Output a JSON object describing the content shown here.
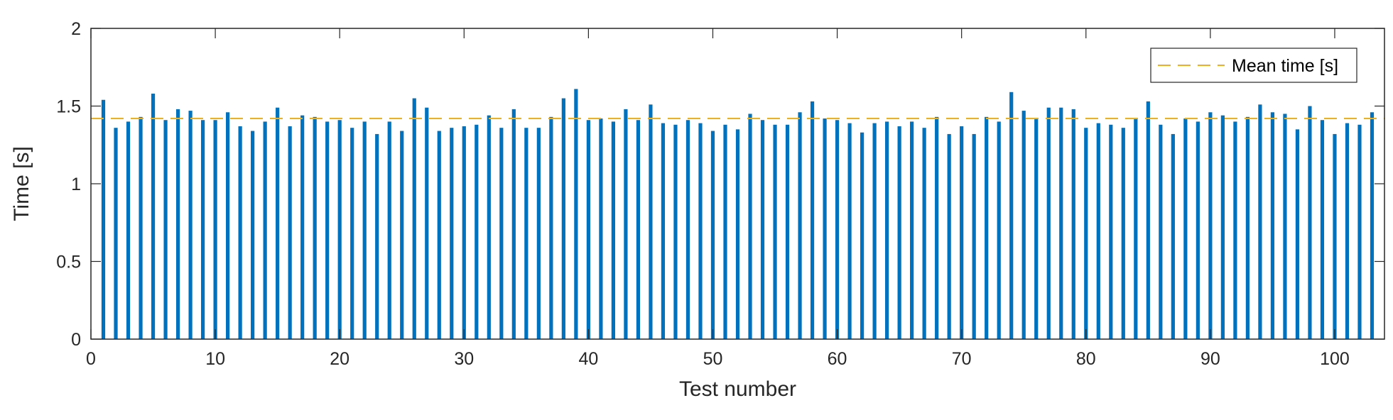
{
  "chart_data": {
    "type": "bar",
    "xlabel": "Test number",
    "ylabel": "Time [s]",
    "xlim": [
      0,
      104
    ],
    "ylim": [
      0,
      2
    ],
    "x_ticks": [
      "0",
      "10",
      "20",
      "30",
      "40",
      "50",
      "60",
      "70",
      "80",
      "90",
      "100"
    ],
    "y_ticks": [
      "0",
      "0.5",
      "1",
      "1.5",
      "2"
    ],
    "grid": false,
    "legend_position": "top-right",
    "colors": {
      "bars": "#0072BD",
      "mean_line": "#EDB120",
      "axes": "#262626"
    },
    "series": [
      {
        "name": "",
        "x": [
          1,
          2,
          3,
          4,
          5,
          6,
          7,
          8,
          9,
          10,
          11,
          12,
          13,
          14,
          15,
          16,
          17,
          18,
          19,
          20,
          21,
          22,
          23,
          24,
          25,
          26,
          27,
          28,
          29,
          30,
          31,
          32,
          33,
          34,
          35,
          36,
          37,
          38,
          39,
          40,
          41,
          42,
          43,
          44,
          45,
          46,
          47,
          48,
          49,
          50,
          51,
          52,
          53,
          54,
          55,
          56,
          57,
          58,
          59,
          60,
          61,
          62,
          63,
          64,
          65,
          66,
          67,
          68,
          69,
          70,
          71,
          72,
          73,
          74,
          75,
          76,
          77,
          78,
          79,
          80,
          81,
          82,
          83,
          84,
          85,
          86,
          87,
          88,
          89,
          90,
          91,
          92,
          93,
          94,
          95,
          96,
          97,
          98,
          99,
          100,
          101,
          102,
          103
        ],
        "values": [
          1.54,
          1.36,
          1.4,
          1.43,
          1.58,
          1.41,
          1.48,
          1.47,
          1.41,
          1.41,
          1.46,
          1.37,
          1.34,
          1.4,
          1.49,
          1.37,
          1.44,
          1.43,
          1.4,
          1.41,
          1.36,
          1.4,
          1.32,
          1.4,
          1.34,
          1.55,
          1.49,
          1.34,
          1.36,
          1.37,
          1.38,
          1.44,
          1.36,
          1.48,
          1.36,
          1.36,
          1.43,
          1.55,
          1.61,
          1.41,
          1.42,
          1.4,
          1.48,
          1.41,
          1.51,
          1.39,
          1.38,
          1.41,
          1.39,
          1.34,
          1.38,
          1.35,
          1.45,
          1.41,
          1.38,
          1.38,
          1.46,
          1.53,
          1.42,
          1.41,
          1.39,
          1.33,
          1.39,
          1.4,
          1.37,
          1.4,
          1.36,
          1.43,
          1.32,
          1.37,
          1.32,
          1.43,
          1.4,
          1.59,
          1.47,
          1.42,
          1.49,
          1.49,
          1.48,
          1.36,
          1.39,
          1.38,
          1.36,
          1.42,
          1.53,
          1.38,
          1.32,
          1.42,
          1.4,
          1.46,
          1.44,
          1.4,
          1.43,
          1.51,
          1.46,
          1.45,
          1.35,
          1.5,
          1.41,
          1.32,
          1.39,
          1.38,
          1.46
        ]
      },
      {
        "name": "Mean time [s]",
        "type": "line",
        "style": "dashed",
        "value": 1.42
      }
    ]
  }
}
